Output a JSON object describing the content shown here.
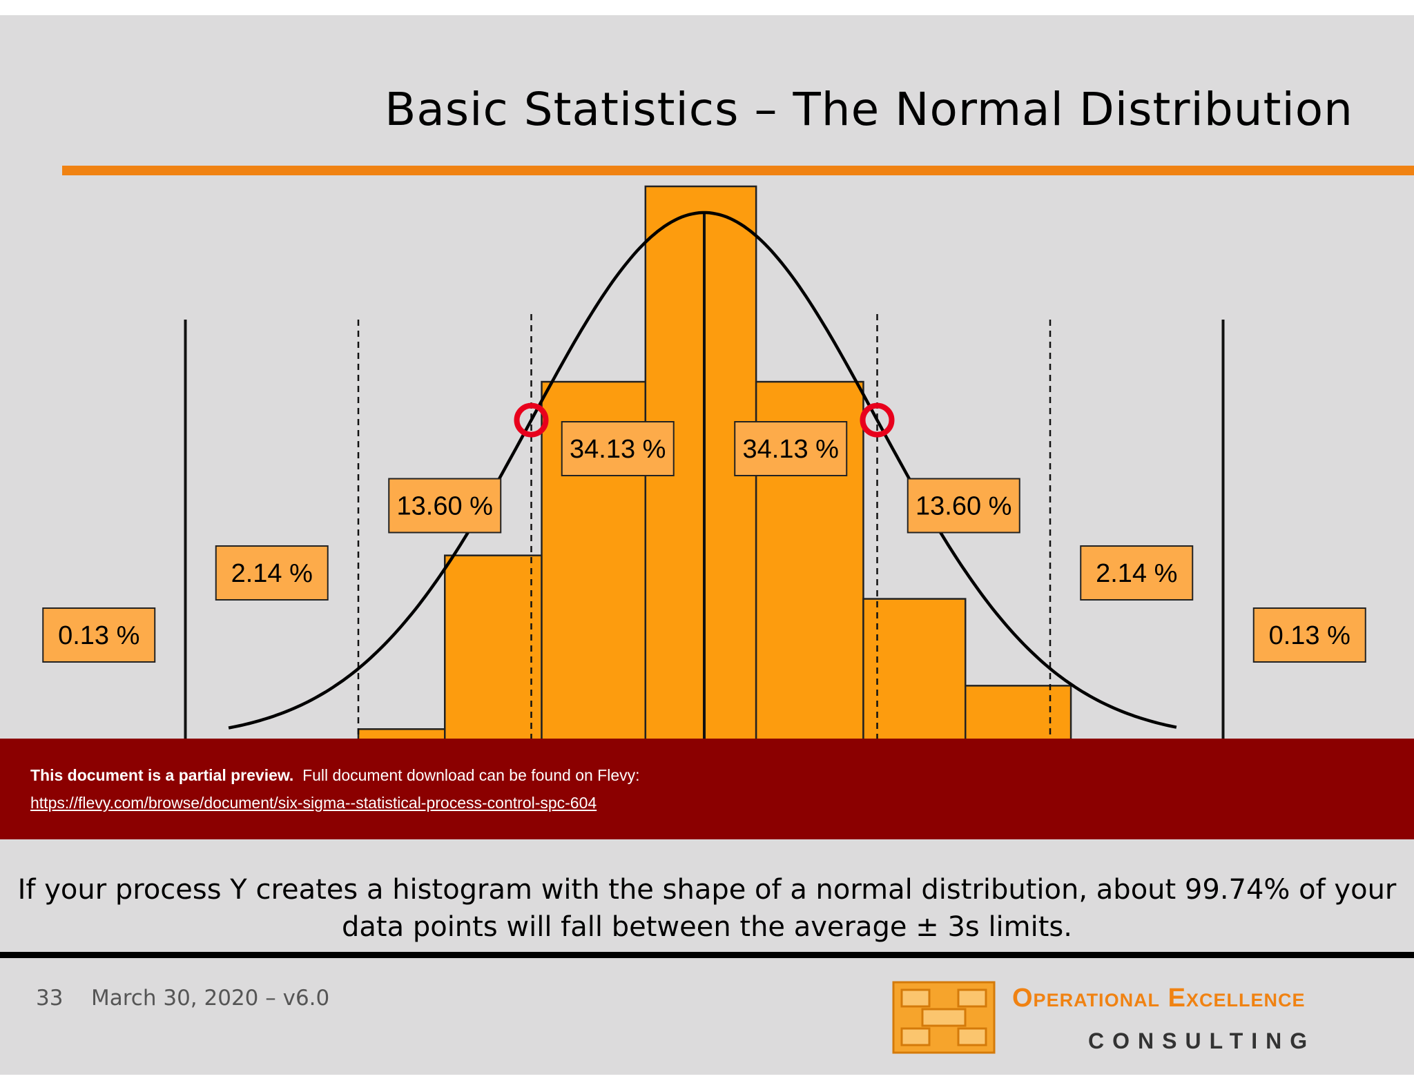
{
  "slide": {
    "title": "Basic Statistics – The Normal Distribution",
    "caption": "If your process Y creates a histogram with the shape of a normal distribution, about 99.74% of your data points will fall between the average ± 3s limits.",
    "page_number": "33",
    "date": "March 30, 2020 – v6.0"
  },
  "colors": {
    "accent": "#f08212",
    "bar_fill": "#fd9c0e",
    "label_fill": "#fdab4a",
    "marker": "#e8001c",
    "banner": "#8b0000"
  },
  "chart_data": {
    "type": "bar",
    "title": "",
    "values": [
      1,
      17,
      33,
      51,
      33,
      13,
      5
    ],
    "x_range": [
      -3,
      3
    ],
    "bins": [
      [
        -2.0,
        -1.5
      ],
      [
        -1.5,
        -0.94
      ],
      [
        -0.94,
        -0.34
      ],
      [
        -0.34,
        0.3
      ],
      [
        0.3,
        0.92
      ],
      [
        0.92,
        1.51
      ],
      [
        1.51,
        2.12
      ]
    ],
    "curve": "normal",
    "sigma_lines": [
      {
        "x": -3,
        "style": "solid"
      },
      {
        "x": -2,
        "style": "dashed"
      },
      {
        "x": -1,
        "style": "dashed"
      },
      {
        "x": 0,
        "style": "solid"
      },
      {
        "x": 1,
        "style": "dashed"
      },
      {
        "x": 2,
        "style": "dashed"
      },
      {
        "x": 3,
        "style": "solid"
      }
    ],
    "inflection_markers": [
      -1,
      1
    ],
    "annotations": [
      "0.13 %",
      "2.14 %",
      "13.60 %",
      "34.13 %",
      "34.13 %",
      "13.60 %",
      "2.14 %",
      "0.13 %"
    ],
    "annotation_regions": [
      [
        -4,
        -3
      ],
      [
        -3,
        -2
      ],
      [
        -2,
        -1
      ],
      [
        -1,
        0
      ],
      [
        0,
        1
      ],
      [
        1,
        2
      ],
      [
        2,
        3
      ],
      [
        3,
        4
      ]
    ],
    "annotation_levels": [
      0.0,
      0.12,
      0.25,
      0.36,
      0.36,
      0.25,
      0.12,
      0.0
    ]
  },
  "banner": {
    "bold_text": "This document is a partial preview.",
    "text": "Full document download can be found on Flevy:",
    "url": "https://flevy.com/browse/document/six-sigma--statistical-process-control-spc-604"
  },
  "logo": {
    "line1": "Operational Excellence",
    "line2": "CONSULTING"
  }
}
